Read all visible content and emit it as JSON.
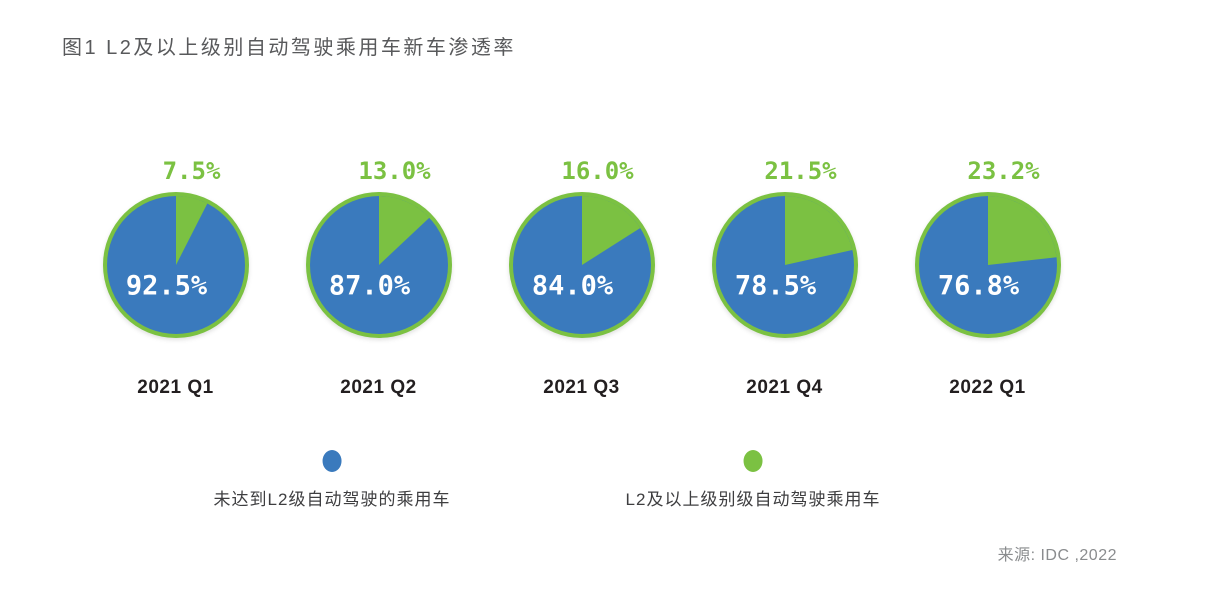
{
  "title": "图1 L2及以上级别自动驾驶乘用车新车渗透率",
  "source": "来源: IDC ,2022",
  "colors": {
    "blue": "#3a7abd",
    "green": "#7bc142",
    "title_gray": "#58595b",
    "quarter_dark": "#231f20",
    "legend_text": "#3e3e40",
    "source_gray": "#8a8c8e",
    "inner_label_white": "#ffffff"
  },
  "legend": {
    "items": [
      {
        "label": "未达到L2级自动驾驶的乘用车",
        "color": "#3a7abd"
      },
      {
        "label": "L2及以上级别级自动驾驶乘用车",
        "color": "#7bc142"
      }
    ]
  },
  "chart_data": {
    "type": "pie",
    "title": "图1 L2及以上级别自动驾驶乘用车新车渗透率",
    "categories": [
      "2021 Q1",
      "2021 Q2",
      "2021 Q3",
      "2021 Q4",
      "2022 Q1"
    ],
    "series": [
      {
        "name": "未达到L2级自动驾驶的乘用车",
        "color": "#3a7abd",
        "values": [
          92.5,
          87.0,
          84.0,
          78.5,
          76.8
        ]
      },
      {
        "name": "L2及以上级别级自动驾驶乘用车",
        "color": "#7bc142",
        "values": [
          7.5,
          13.0,
          16.0,
          21.5,
          23.2
        ]
      }
    ],
    "value_suffix": "%",
    "layout": {
      "pie_count": 5,
      "green_slice_start_angle_deg": 0,
      "green_slice_direction": "clockwise",
      "legend_position": "bottom",
      "blue_value_label_inside": true,
      "green_value_label_above": true
    },
    "source": "来源: IDC ,2022"
  }
}
